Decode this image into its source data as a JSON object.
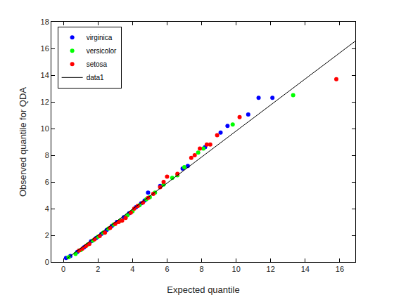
{
  "chart_data": {
    "type": "scatter",
    "x_label": "Expected quantile",
    "y_label": "Observed quantile for QDA",
    "xlim": [
      -0.7,
      16.9
    ],
    "ylim": [
      0,
      18
    ],
    "xticks": [
      0,
      2,
      4,
      6,
      8,
      10,
      12,
      14,
      16
    ],
    "yticks": [
      0,
      2,
      4,
      6,
      8,
      10,
      12,
      14,
      16,
      18
    ],
    "grid": false,
    "legend": "top-left",
    "series": [
      {
        "name": "virginica",
        "color": "#0000ff",
        "type": "scatter",
        "marker": "circle",
        "x": [
          0.15,
          0.4,
          0.8,
          1.2,
          1.6,
          1.9,
          2.2,
          2.5,
          2.8,
          3.1,
          3.5,
          3.8,
          4.2,
          4.5,
          4.7,
          4.9,
          5.6,
          6.9,
          7.2,
          8.2,
          9.1,
          9.5,
          10.7,
          11.3,
          12.1
        ],
        "values": [
          0.3,
          0.45,
          0.75,
          1.1,
          1.55,
          1.8,
          2.1,
          2.4,
          2.7,
          3.0,
          3.35,
          3.65,
          4.1,
          4.4,
          4.6,
          5.2,
          5.7,
          7.0,
          7.2,
          8.6,
          9.7,
          10.2,
          11.05,
          12.3,
          12.3
        ]
      },
      {
        "name": "versicolor",
        "color": "#00ff00",
        "type": "scatter",
        "marker": "circle",
        "x": [
          0.3,
          0.7,
          1.0,
          1.4,
          1.7,
          2.0,
          2.3,
          2.6,
          2.9,
          3.3,
          3.7,
          4.0,
          4.4,
          4.8,
          5.0,
          5.3,
          5.8,
          6.3,
          6.6,
          7.0,
          7.8,
          8.1,
          9.8,
          13.3
        ],
        "values": [
          0.35,
          0.6,
          0.9,
          1.3,
          1.6,
          1.9,
          2.2,
          2.5,
          2.8,
          3.1,
          3.5,
          3.8,
          4.25,
          4.7,
          4.85,
          5.2,
          5.8,
          6.3,
          6.5,
          7.1,
          8.2,
          8.5,
          10.3,
          12.5
        ]
      },
      {
        "name": "setosa",
        "color": "#ff0000",
        "type": "scatter",
        "marker": "circle",
        "x": [
          0.9,
          1.1,
          1.3,
          1.5,
          1.8,
          2.1,
          2.4,
          2.7,
          3.0,
          3.2,
          3.4,
          3.6,
          3.9,
          4.1,
          4.3,
          4.6,
          4.9,
          5.2,
          5.6,
          5.8,
          6.0,
          6.6,
          7.4,
          7.6,
          7.9,
          8.3,
          8.5,
          8.9,
          10.2,
          15.8
        ],
        "values": [
          0.85,
          1.0,
          1.2,
          1.35,
          1.7,
          1.95,
          2.2,
          2.55,
          2.85,
          3.0,
          3.1,
          3.3,
          3.7,
          4.0,
          4.2,
          4.45,
          4.8,
          5.1,
          5.6,
          6.0,
          6.4,
          6.6,
          7.8,
          8.0,
          8.5,
          8.8,
          8.8,
          9.5,
          10.85,
          13.7
        ]
      },
      {
        "name": "data1",
        "color": "#000000",
        "type": "line",
        "line_style": "solid",
        "x": [
          0.2,
          16.9
        ],
        "values": [
          0.25,
          16.55
        ]
      }
    ]
  }
}
